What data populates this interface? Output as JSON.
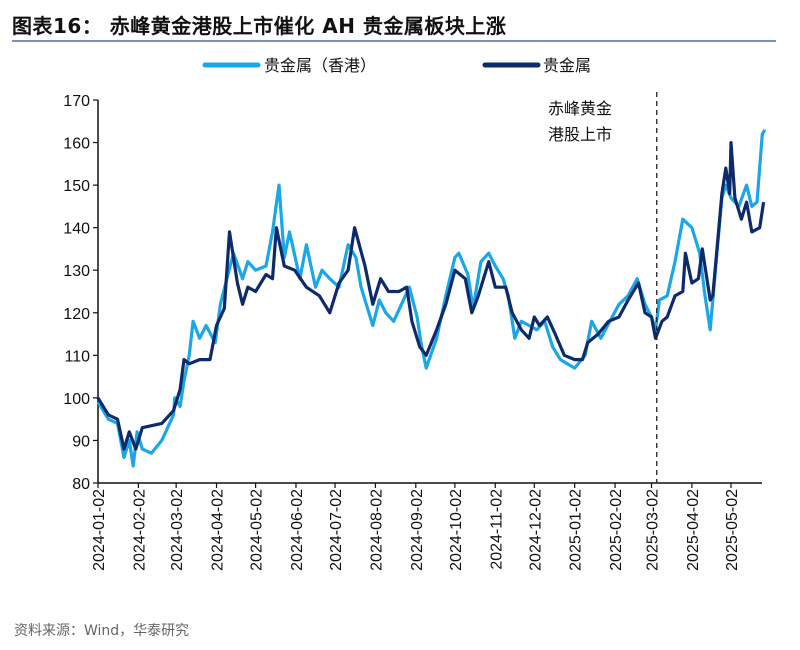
{
  "title": "图表16：  赤峰黄金港股上市催化 AH 贵金属板块上涨",
  "source": "资料来源：Wind，华泰研究",
  "chart_data": {
    "type": "line",
    "title": "图表16：  赤峰黄金港股上市催化 AH 贵金属板块上涨",
    "xlabel": "",
    "ylabel": "",
    "ylim": [
      80,
      170
    ],
    "yticks": [
      80,
      90,
      100,
      110,
      120,
      130,
      140,
      150,
      160,
      170
    ],
    "xticks": [
      "2024-01-02",
      "2024-02-02",
      "2024-03-02",
      "2024-04-02",
      "2024-05-02",
      "2024-06-02",
      "2024-07-02",
      "2024-08-02",
      "2024-09-02",
      "2024-10-02",
      "2024-11-02",
      "2024-12-02",
      "2025-01-02",
      "2025-02-02",
      "2025-03-02",
      "2025-04-02",
      "2025-05-02"
    ],
    "grid": false,
    "legend": "top",
    "annotation": {
      "date": "2025-03-06",
      "lines": [
        "赤峰黄金",
        "港股上市"
      ],
      "style": "dashed-vertical"
    },
    "series": [
      {
        "name": "贵金属（香港）",
        "color": "#1aa7e8",
        "x": [
          "2024-01-02",
          "2024-01-10",
          "2024-01-17",
          "2024-01-22",
          "2024-01-26",
          "2024-01-29",
          "2024-02-01",
          "2024-02-05",
          "2024-02-12",
          "2024-02-20",
          "2024-02-29",
          "2024-03-01",
          "2024-03-05",
          "2024-03-08",
          "2024-03-12",
          "2024-03-15",
          "2024-03-20",
          "2024-03-25",
          "2024-04-01",
          "2024-04-05",
          "2024-04-10",
          "2024-04-15",
          "2024-04-22",
          "2024-04-26",
          "2024-05-02",
          "2024-05-10",
          "2024-05-15",
          "2024-05-20",
          "2024-05-24",
          "2024-05-28",
          "2024-06-05",
          "2024-06-10",
          "2024-06-17",
          "2024-06-22",
          "2024-06-28",
          "2024-07-05",
          "2024-07-12",
          "2024-07-18",
          "2024-07-22",
          "2024-07-26",
          "2024-07-31",
          "2024-08-05",
          "2024-08-10",
          "2024-08-16",
          "2024-08-22",
          "2024-08-28",
          "2024-09-03",
          "2024-09-06",
          "2024-09-10",
          "2024-09-18",
          "2024-09-25",
          "2024-10-02",
          "2024-10-05",
          "2024-10-12",
          "2024-10-16",
          "2024-10-22",
          "2024-10-28",
          "2024-11-02",
          "2024-11-08",
          "2024-11-12",
          "2024-11-17",
          "2024-11-22",
          "2024-11-28",
          "2024-12-04",
          "2024-12-10",
          "2024-12-16",
          "2024-12-22",
          "2025-01-02",
          "2025-01-10",
          "2025-01-15",
          "2025-01-22",
          "2025-01-29",
          "2025-02-05",
          "2025-02-12",
          "2025-02-19",
          "2025-02-25",
          "2025-03-02",
          "2025-03-05",
          "2025-03-08",
          "2025-03-14",
          "2025-03-20",
          "2025-03-26",
          "2025-04-02",
          "2025-04-08",
          "2025-04-12",
          "2025-04-16",
          "2025-04-20",
          "2025-04-25",
          "2025-04-28",
          "2025-05-02",
          "2025-05-08",
          "2025-05-14",
          "2025-05-18",
          "2025-05-22",
          "2025-05-26",
          "2025-05-28"
        ],
        "values": [
          99,
          95,
          94,
          86,
          90,
          84,
          92,
          88,
          87,
          90,
          96,
          100,
          98,
          104,
          110,
          118,
          114,
          117,
          113,
          122,
          128,
          134,
          128,
          132,
          130,
          131,
          139,
          150,
          133,
          139,
          128,
          136,
          126,
          130,
          128,
          126,
          136,
          133,
          126,
          122,
          117,
          123,
          120,
          118,
          122,
          126,
          119,
          113,
          107,
          114,
          124,
          133,
          134,
          129,
          121,
          132,
          134,
          131,
          128,
          124,
          114,
          118,
          117,
          116,
          118,
          112,
          109,
          107,
          110,
          118,
          114,
          118,
          122,
          124,
          128,
          122,
          119,
          116,
          123,
          124,
          132,
          142,
          140,
          134,
          124,
          116,
          130,
          147,
          150,
          147,
          145,
          150,
          145,
          146,
          162,
          163
        ]
      },
      {
        "name": "贵金属",
        "color": "#0d2a6b",
        "x": [
          "2024-01-02",
          "2024-01-10",
          "2024-01-17",
          "2024-01-22",
          "2024-01-26",
          "2024-01-31",
          "2024-02-05",
          "2024-02-20",
          "2024-02-29",
          "2024-03-05",
          "2024-03-08",
          "2024-03-12",
          "2024-03-20",
          "2024-03-28",
          "2024-04-02",
          "2024-04-08",
          "2024-04-12",
          "2024-04-18",
          "2024-04-22",
          "2024-04-26",
          "2024-05-02",
          "2024-05-10",
          "2024-05-15",
          "2024-05-18",
          "2024-05-24",
          "2024-06-01",
          "2024-06-10",
          "2024-06-20",
          "2024-06-28",
          "2024-07-05",
          "2024-07-12",
          "2024-07-17",
          "2024-07-25",
          "2024-07-31",
          "2024-08-06",
          "2024-08-12",
          "2024-08-20",
          "2024-08-26",
          "2024-08-30",
          "2024-09-05",
          "2024-09-10",
          "2024-09-18",
          "2024-09-25",
          "2024-10-02",
          "2024-10-10",
          "2024-10-15",
          "2024-10-20",
          "2024-10-28",
          "2024-11-02",
          "2024-11-10",
          "2024-11-15",
          "2024-11-22",
          "2024-11-28",
          "2024-12-02",
          "2024-12-06",
          "2024-12-12",
          "2024-12-18",
          "2024-12-25",
          "2025-01-02",
          "2025-01-08",
          "2025-01-12",
          "2025-01-20",
          "2025-01-28",
          "2025-02-05",
          "2025-02-12",
          "2025-02-20",
          "2025-02-25",
          "2025-03-02",
          "2025-03-05",
          "2025-03-10",
          "2025-03-14",
          "2025-03-20",
          "2025-03-26",
          "2025-03-28",
          "2025-04-02",
          "2025-04-07",
          "2025-04-10",
          "2025-04-16",
          "2025-04-18",
          "2025-04-25",
          "2025-04-28",
          "2025-05-01",
          "2025-05-02",
          "2025-05-05",
          "2025-05-10",
          "2025-05-14",
          "2025-05-18",
          "2025-05-24",
          "2025-05-27"
        ],
        "values": [
          100,
          96,
          95,
          88,
          92,
          88,
          93,
          94,
          97,
          102,
          109,
          108,
          109,
          109,
          117,
          121,
          139,
          127,
          122,
          126,
          125,
          129,
          128,
          140,
          131,
          130,
          126,
          124,
          120,
          127,
          130,
          140,
          131,
          122,
          128,
          125,
          125,
          126,
          118,
          112,
          110,
          116,
          122,
          130,
          128,
          120,
          124,
          132,
          126,
          126,
          120,
          116,
          114,
          119,
          117,
          119,
          115,
          110,
          109,
          109,
          113,
          115,
          118,
          119,
          123,
          127,
          120,
          119,
          114,
          118,
          119,
          124,
          125,
          134,
          127,
          128,
          135,
          123,
          124,
          148,
          154,
          148,
          160,
          147,
          142,
          146,
          139,
          140,
          146
        ]
      }
    ]
  }
}
